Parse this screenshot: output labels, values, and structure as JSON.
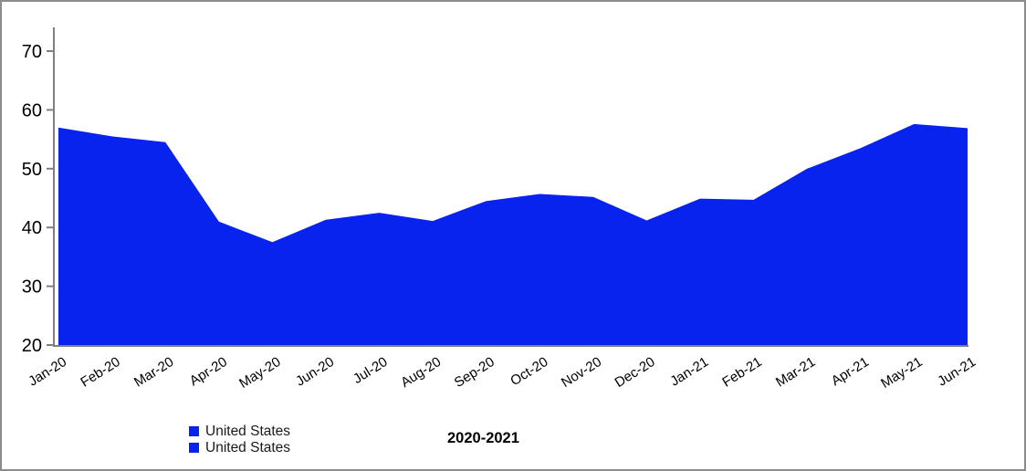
{
  "window": {
    "background": "#ffffff",
    "border_color": "#8c8c8c"
  },
  "chart_data": {
    "type": "area",
    "title": "",
    "xlabel": "",
    "ylabel": "",
    "x_categories": [
      "Jan-20",
      "Feb-20",
      "Mar-20",
      "Apr-20",
      "May-20",
      "Jun-20",
      "Jul-20",
      "Aug-20",
      "Sep-20",
      "Oct-20",
      "Nov-20",
      "Dec-20",
      "Jan-21",
      "Feb-21",
      "Mar-21",
      "Apr-21",
      "May-21",
      "Jun-21"
    ],
    "series": [
      {
        "name": "United States",
        "color": "#0823ee",
        "values": [
          57,
          55.5,
          54.5,
          41,
          37.5,
          41.3,
          42.5,
          41.1,
          44.5,
          45.7,
          45.2,
          41.2,
          44.9,
          44.7,
          50,
          53.5,
          57.6,
          56.9
        ]
      }
    ],
    "y_ticks": [
      20,
      30,
      40,
      50,
      60,
      70
    ],
    "ylim": [
      20,
      75
    ],
    "grid": false,
    "legend_position": "bottom-left",
    "axis_color": "#7f7f7f",
    "text_color": "#000000",
    "y_tick_font_size": 20,
    "x_tick_font_size": 15,
    "x_label_rotation": -32
  },
  "legend": {
    "items": [
      {
        "label": "United States",
        "color": "#0823ee"
      },
      {
        "label": "United States",
        "color": "#0823ee"
      }
    ]
  },
  "footer": {
    "period_label": "2020-2021"
  }
}
